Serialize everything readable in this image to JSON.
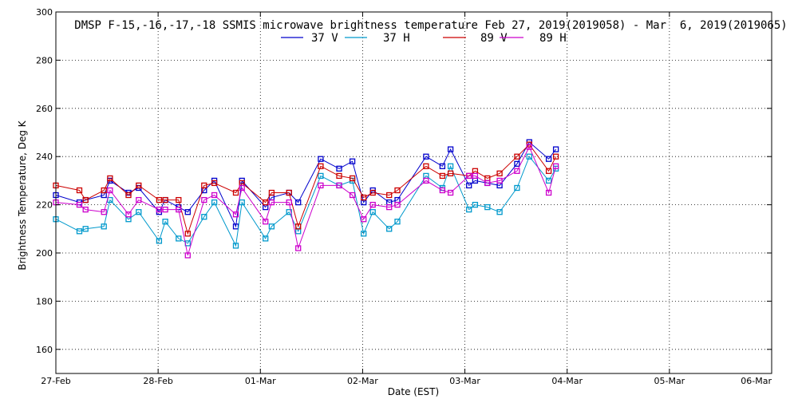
{
  "chart_data": {
    "type": "line",
    "title": "DMSP F-15,-16,-17,-18 SSMIS microwave brightness temperature Feb 27, 2019(2019058) - Mar  6, 2019(2019065)",
    "xlabel": "Date (EST)",
    "ylabel": "Brightness Temperature, Deg K",
    "xlim": [
      0,
      7
    ],
    "ylim": [
      150,
      300
    ],
    "y_ticks": [
      160,
      180,
      200,
      220,
      240,
      260,
      280,
      300
    ],
    "x_ticks": [
      {
        "x": 0,
        "label": "27-Feb"
      },
      {
        "x": 1,
        "label": "28-Feb"
      },
      {
        "x": 2,
        "label": "01-Mar"
      },
      {
        "x": 3,
        "label": "02-Mar"
      },
      {
        "x": 4,
        "label": "03-Mar"
      },
      {
        "x": 5,
        "label": "04-Mar"
      },
      {
        "x": 6,
        "label": "05-Mar"
      },
      {
        "x": 7,
        "label": "06-Mar"
      }
    ],
    "grid": true,
    "legend_position": "top",
    "x_unit": "days after 27-Feb 00:00",
    "series": [
      {
        "name": "37 V",
        "color": "#0000cc",
        "x": [
          0.0,
          0.23,
          0.29,
          0.47,
          0.53,
          0.71,
          0.81,
          1.01,
          1.07,
          1.2,
          1.29,
          1.45,
          1.55,
          1.76,
          1.82,
          2.05,
          2.11,
          2.28,
          2.37,
          2.59,
          2.77,
          2.9,
          3.01,
          3.1,
          3.26,
          3.34,
          3.62,
          3.78,
          3.86,
          4.04,
          4.1,
          4.22,
          4.34,
          4.51,
          4.63,
          4.82,
          4.89
        ],
        "y": [
          224,
          221,
          222,
          224,
          230,
          225,
          227,
          217,
          222,
          219,
          217,
          226,
          230,
          211,
          230,
          219,
          223,
          225,
          221,
          239,
          235,
          238,
          221,
          226,
          221,
          222,
          240,
          236,
          243,
          228,
          230,
          229,
          228,
          237,
          246,
          239,
          243
        ]
      },
      {
        "name": "37 H",
        "color": "#0099cc",
        "x": [
          0.0,
          0.23,
          0.29,
          0.47,
          0.53,
          0.71,
          0.81,
          1.01,
          1.07,
          1.2,
          1.29,
          1.45,
          1.55,
          1.76,
          1.82,
          2.05,
          2.11,
          2.28,
          2.37,
          2.59,
          2.77,
          2.9,
          3.01,
          3.1,
          3.26,
          3.34,
          3.62,
          3.78,
          3.86,
          4.04,
          4.1,
          4.22,
          4.34,
          4.51,
          4.63,
          4.82,
          4.89
        ],
        "y": [
          214,
          209,
          210,
          211,
          222,
          214,
          217,
          205,
          213,
          206,
          204,
          215,
          221,
          203,
          221,
          206,
          211,
          217,
          209,
          232,
          228,
          230,
          208,
          217,
          210,
          213,
          232,
          227,
          236,
          218,
          220,
          219,
          217,
          227,
          240,
          230,
          235
        ]
      },
      {
        "name": "89 V",
        "color": "#cc0000",
        "x": [
          0.0,
          0.23,
          0.29,
          0.47,
          0.53,
          0.71,
          0.81,
          1.01,
          1.07,
          1.2,
          1.29,
          1.45,
          1.55,
          1.76,
          1.82,
          2.05,
          2.11,
          2.28,
          2.37,
          2.59,
          2.77,
          2.9,
          3.01,
          3.1,
          3.26,
          3.34,
          3.62,
          3.78,
          3.86,
          4.04,
          4.1,
          4.22,
          4.34,
          4.51,
          4.63,
          4.82,
          4.89
        ],
        "y": [
          228,
          226,
          222,
          226,
          231,
          224,
          228,
          222,
          222,
          222,
          208,
          228,
          229,
          225,
          229,
          221,
          225,
          225,
          211,
          236,
          232,
          231,
          223,
          225,
          224,
          226,
          236,
          232,
          233,
          232,
          234,
          231,
          233,
          240,
          245,
          234,
          240
        ]
      },
      {
        "name": "89 H",
        "color": "#cc00cc",
        "x": [
          0.0,
          0.23,
          0.29,
          0.47,
          0.53,
          0.71,
          0.81,
          1.01,
          1.07,
          1.2,
          1.29,
          1.45,
          1.55,
          1.76,
          1.82,
          2.05,
          2.11,
          2.28,
          2.37,
          2.59,
          2.77,
          2.9,
          3.01,
          3.1,
          3.26,
          3.34,
          3.62,
          3.78,
          3.86,
          4.04,
          4.1,
          4.22,
          4.34,
          4.51,
          4.63,
          4.82,
          4.89
        ],
        "y": [
          221,
          220,
          218,
          217,
          226,
          216,
          222,
          218,
          218,
          218,
          199,
          222,
          224,
          216,
          227,
          213,
          221,
          221,
          202,
          228,
          228,
          224,
          214,
          220,
          219,
          220,
          230,
          226,
          225,
          232,
          232,
          229,
          230,
          234,
          244,
          225,
          236
        ]
      }
    ]
  }
}
